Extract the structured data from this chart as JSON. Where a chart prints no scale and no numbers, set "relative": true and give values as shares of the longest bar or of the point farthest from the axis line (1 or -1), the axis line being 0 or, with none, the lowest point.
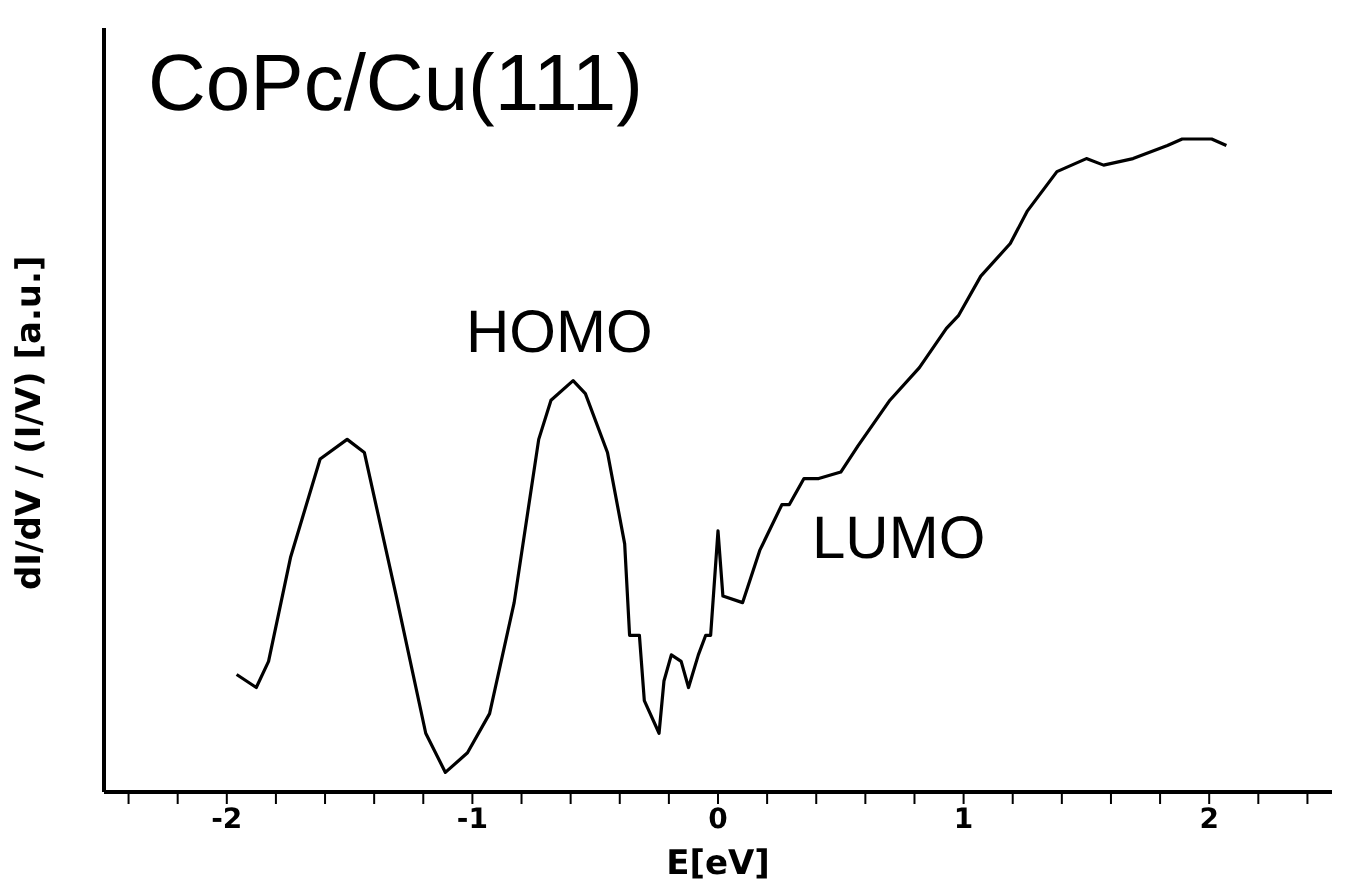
{
  "chart_data": {
    "type": "line",
    "title": "CoPc/Cu(111)",
    "xlabel": "E[eV]",
    "ylabel": "dI/dV / (I/V) [a.u.]",
    "relative": true,
    "x": [
      -1.96,
      -1.88,
      -1.83,
      -1.74,
      -1.62,
      -1.51,
      -1.44,
      -1.31,
      -1.19,
      -1.11,
      -1.02,
      -0.93,
      -0.83,
      -0.73,
      -0.68,
      -0.59,
      -0.54,
      -0.45,
      -0.38,
      -0.36,
      -0.32,
      -0.3,
      -0.24,
      -0.22,
      -0.19,
      -0.15,
      -0.12,
      -0.08,
      -0.05,
      -0.03,
      0.0,
      0.02,
      0.1,
      0.17,
      0.26,
      0.29,
      0.35,
      0.41,
      0.5,
      0.57,
      0.7,
      0.82,
      0.93,
      0.98,
      1.07,
      1.19,
      1.26,
      1.38,
      1.5,
      1.57,
      1.69,
      1.83,
      1.89,
      2.01,
      2.07
    ],
    "series": [
      {
        "color": "#000000",
        "values": [
          0.18,
          0.16,
          0.2,
          0.36,
          0.51,
          0.54,
          0.52,
          0.3,
          0.09,
          0.03,
          0.06,
          0.12,
          0.29,
          0.54,
          0.6,
          0.63,
          0.61,
          0.52,
          0.38,
          0.24,
          0.24,
          0.14,
          0.09,
          0.17,
          0.21,
          0.2,
          0.16,
          0.21,
          0.24,
          0.24,
          0.4,
          0.3,
          0.29,
          0.37,
          0.44,
          0.44,
          0.48,
          0.48,
          0.49,
          0.53,
          0.6,
          0.65,
          0.71,
          0.73,
          0.79,
          0.84,
          0.89,
          0.95,
          0.97,
          0.96,
          0.97,
          0.99,
          1.0,
          1.0,
          0.99
        ]
      }
    ],
    "xlim": [
      -2.5,
      2.5
    ],
    "xticks": [
      {
        "value": -2.4,
        "label": null
      },
      {
        "value": -2.2,
        "label": null
      },
      {
        "value": -2,
        "label": "-2"
      },
      {
        "value": -1.8,
        "label": null
      },
      {
        "value": -1.6,
        "label": null
      },
      {
        "value": -1.4,
        "label": null
      },
      {
        "value": -1.2,
        "label": null
      },
      {
        "value": -1,
        "label": "-1"
      },
      {
        "value": -0.8,
        "label": null
      },
      {
        "value": -0.6,
        "label": null
      },
      {
        "value": -0.4,
        "label": null
      },
      {
        "value": -0.2,
        "label": null
      },
      {
        "value": 0,
        "label": "0"
      },
      {
        "value": 0.2,
        "label": null
      },
      {
        "value": 0.4,
        "label": null
      },
      {
        "value": 0.6,
        "label": null
      },
      {
        "value": 0.8,
        "label": null
      },
      {
        "value": 1,
        "label": "1"
      },
      {
        "value": 1.2,
        "label": null
      },
      {
        "value": 1.4,
        "label": null
      },
      {
        "value": 1.6,
        "label": null
      },
      {
        "value": 1.8,
        "label": null
      },
      {
        "value": 2,
        "label": "2"
      },
      {
        "value": 2.2,
        "label": null
      },
      {
        "value": 2.4,
        "label": null
      }
    ],
    "annotations": [
      "HOMO",
      "LUMO"
    ],
    "grid": false,
    "legend": false,
    "marker": "none",
    "line_style": "solid"
  }
}
